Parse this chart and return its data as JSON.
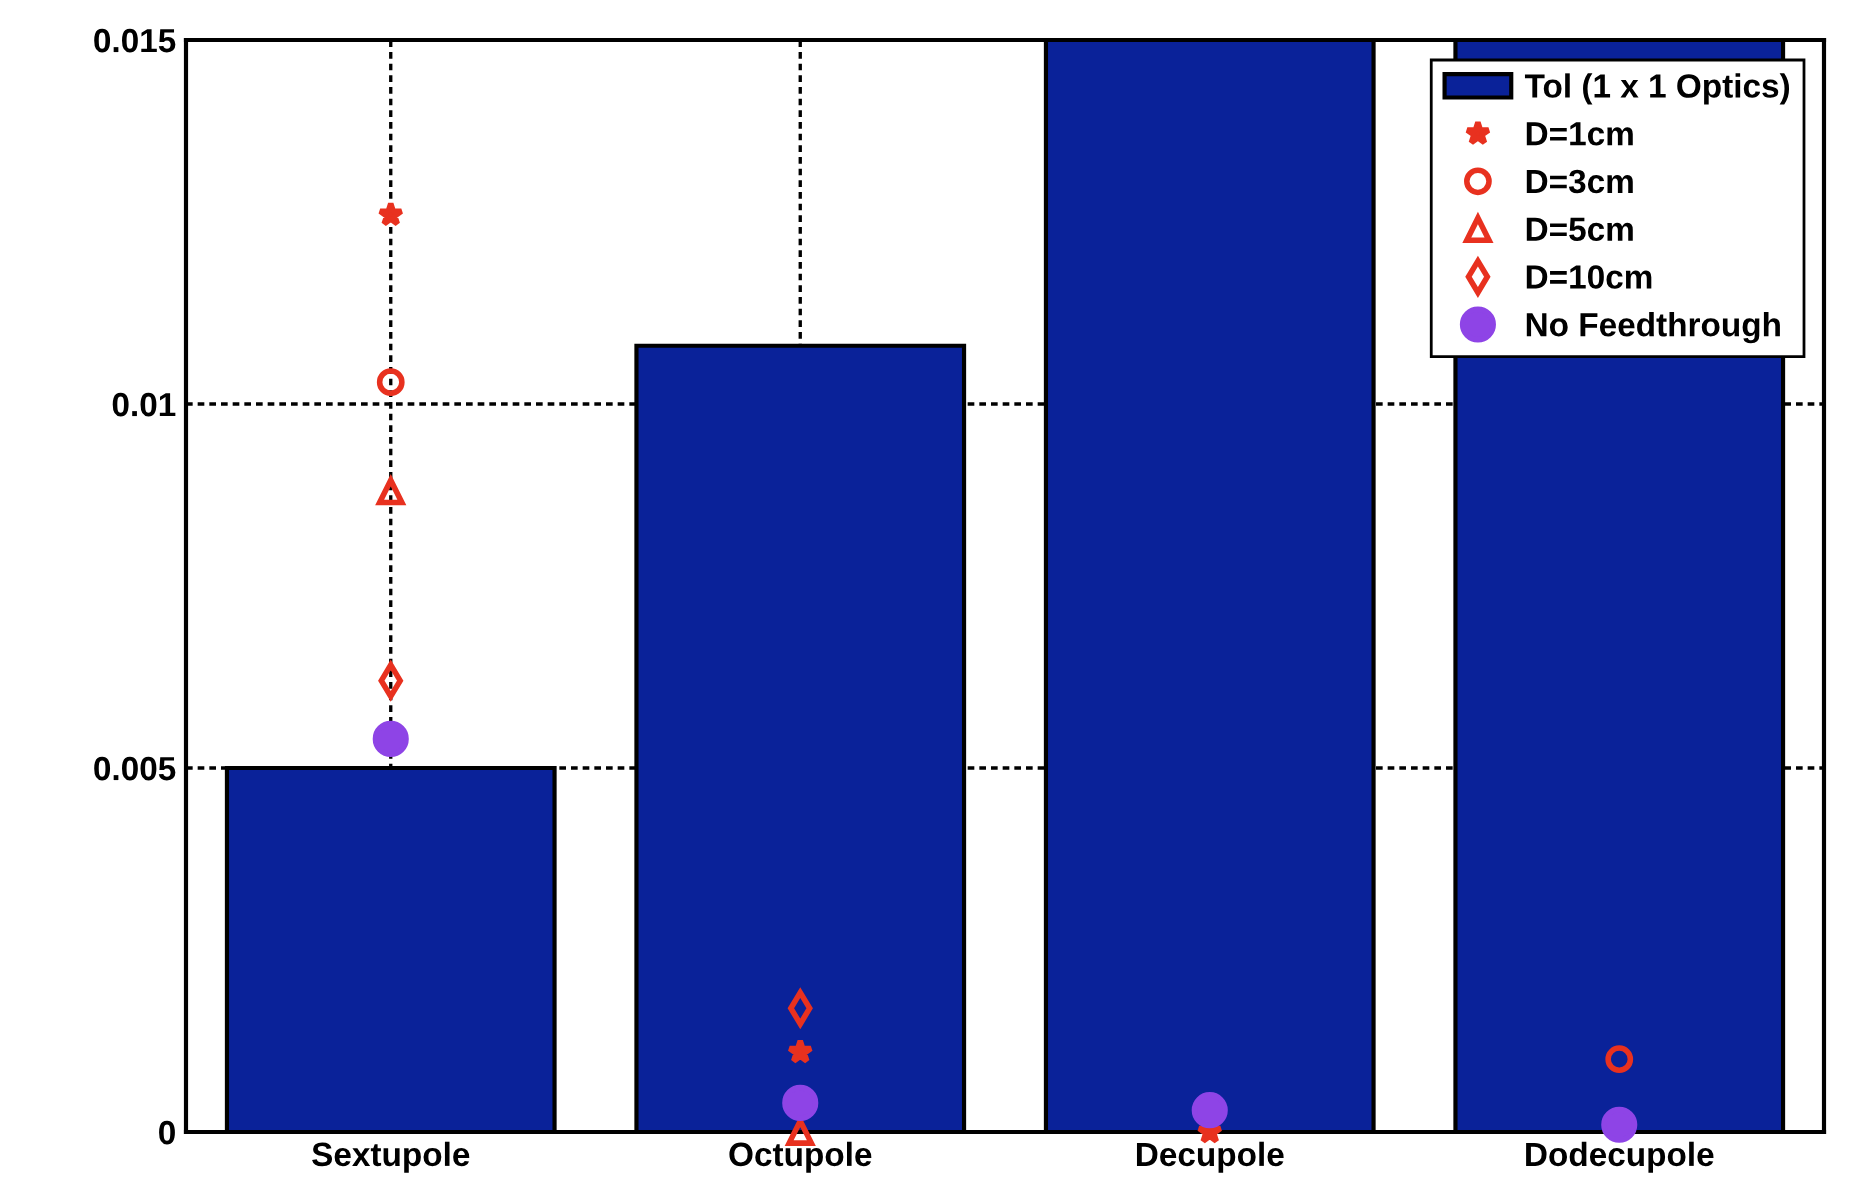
{
  "chart_data": {
    "type": "bar",
    "categories": [
      "Sextupole",
      "Octupole",
      "Decupole",
      "Dodecupole"
    ],
    "series": [
      {
        "name": "Tol (1 x 1 Optics)",
        "color": "#0a2299",
        "values": [
          0.005,
          0.0108,
          0.015,
          0.015
        ]
      },
      {
        "name": "D=1cm",
        "type": "scatter",
        "marker": "star",
        "color": "#e8311f",
        "x": [
          "Sextupole",
          "Octupole",
          "Decupole",
          "Dodecupole"
        ],
        "values": [
          0.0126,
          0.0011,
          0.0,
          null
        ]
      },
      {
        "name": "D=3cm",
        "type": "scatter",
        "marker": "circle",
        "color": "#e8311f",
        "x": [
          "Sextupole",
          "Octupole",
          "Decupole",
          "Dodecupole"
        ],
        "values": [
          0.0103,
          null,
          null,
          0.001
        ]
      },
      {
        "name": "D=5cm",
        "type": "scatter",
        "marker": "triangle",
        "color": "#e8311f",
        "x": [
          "Sextupole",
          "Octupole",
          "Decupole",
          "Dodecupole"
        ],
        "values": [
          0.0088,
          0.0,
          null,
          null
        ]
      },
      {
        "name": "D=10cm",
        "type": "scatter",
        "marker": "diamond",
        "color": "#e8311f",
        "x": [
          "Sextupole",
          "Octupole",
          "Decupole",
          "Dodecupole"
        ],
        "values": [
          0.0062,
          0.0017,
          null,
          null
        ]
      },
      {
        "name": "No Feedthrough",
        "type": "scatter",
        "marker": "circle",
        "color": "#8e44e6",
        "x": [
          "Sextupole",
          "Octupole",
          "Decupole",
          "Dodecupole"
        ],
        "values": [
          0.0054,
          0.0004,
          0.0003,
          0.0001
        ]
      }
    ],
    "ylim": [
      0,
      0.015
    ],
    "yticks": [
      0,
      0.005,
      0.01,
      0.015
    ],
    "grid": true,
    "legend": "top right"
  }
}
